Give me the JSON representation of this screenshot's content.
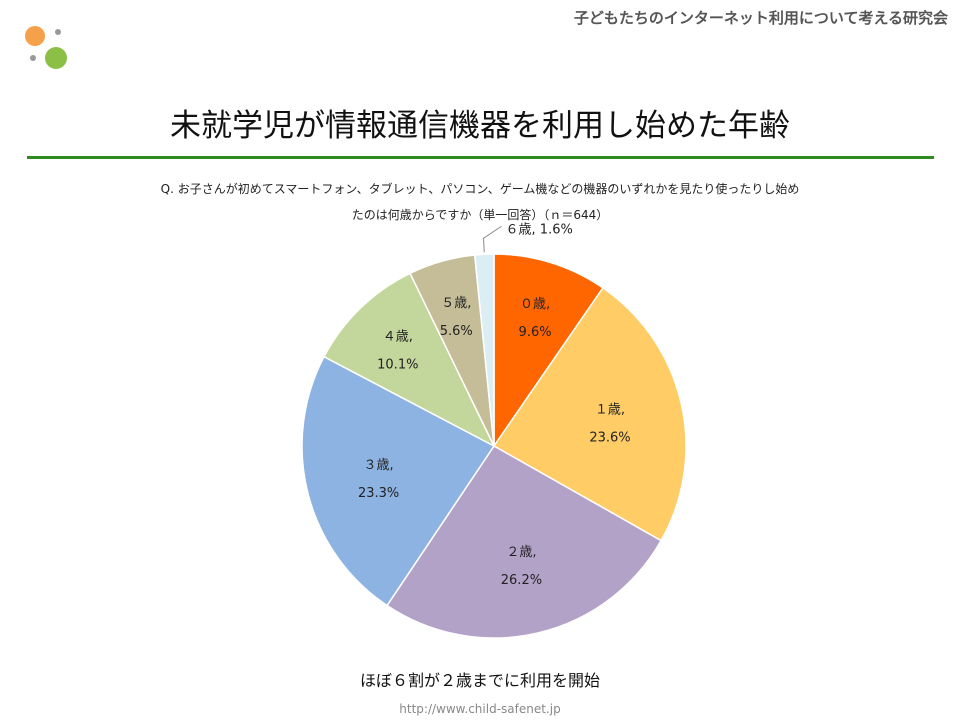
{
  "header": {
    "org_name": "子どもたちのインターネット利用について考える研究会"
  },
  "title": "未就学児が情報通信機器を利用し始めた年齢",
  "question": {
    "line1": "Q. お子さんが初めてスマートフォン、タブレット、パソコン、ゲーム機などの機器のいずれかを見たり使ったりし始め",
    "line2": "たのは何歳からですか（単一回答）（ｎ＝644）"
  },
  "chart_data": {
    "type": "pie",
    "title": "",
    "start_angle": "12 o'clock",
    "direction": "clockwise",
    "slices": [
      {
        "label": "０歳",
        "value": 9.6,
        "display": "9.6%",
        "color": "#ff6600"
      },
      {
        "label": "１歳",
        "value": 23.6,
        "display": "23.6%",
        "color": "#ffcc66"
      },
      {
        "label": "２歳",
        "value": 26.2,
        "display": "26.2%",
        "color": "#b3a2c7"
      },
      {
        "label": "３歳",
        "value": 23.3,
        "display": "23.3%",
        "color": "#8db3e2"
      },
      {
        "label": "４歳",
        "value": 10.1,
        "display": "10.1%",
        "color": "#c3d69b"
      },
      {
        "label": "５歳",
        "value": 5.6,
        "display": "5.6%",
        "color": "#c4bd97"
      },
      {
        "label": "６歳",
        "value": 1.6,
        "display": "1.6%",
        "color": "#daeef3"
      }
    ],
    "label_separator": ","
  },
  "conclusion": "ほぼ６割が２歳までに利用を開始",
  "footer": {
    "url": "http://www.child-safenet.jp"
  },
  "colors": {
    "accent_line": "#2e8b1f",
    "logo_orange": "#f5a04a",
    "logo_green": "#8cbf45",
    "logo_dot": "#999999"
  }
}
